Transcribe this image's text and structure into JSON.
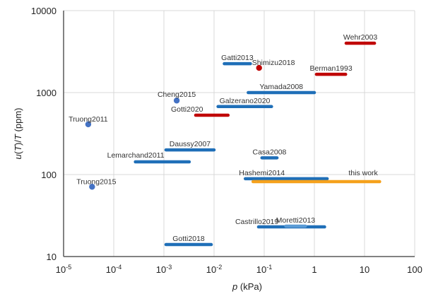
{
  "chart_data": {
    "type": "scatter",
    "title": "",
    "xlabel": {
      "italic": "p",
      "rest": " (kPa)"
    },
    "ylabel": {
      "parts": [
        {
          "t": "u",
          "i": true
        },
        {
          "t": "(",
          "i": false
        },
        {
          "t": "T",
          "i": true
        },
        {
          "t": ")/",
          "i": false
        },
        {
          "t": "T",
          "i": true
        },
        {
          "t": " (ppm)",
          "i": false
        }
      ]
    },
    "xscale": "log",
    "yscale": "log",
    "xlim": [
      1e-05,
      100
    ],
    "ylim": [
      10,
      10000
    ],
    "grid": true,
    "x_ticks": [
      {
        "value": 1e-05,
        "base": "10",
        "exp": "-5"
      },
      {
        "value": 0.0001,
        "base": "10",
        "exp": "-4"
      },
      {
        "value": 0.001,
        "base": "10",
        "exp": "-3"
      },
      {
        "value": 0.01,
        "base": "10",
        "exp": "-2"
      },
      {
        "value": 0.1,
        "base": "10",
        "exp": "-1"
      },
      {
        "value": 1,
        "base": "1",
        "exp": ""
      },
      {
        "value": 10,
        "base": "10",
        "exp": ""
      },
      {
        "value": 100,
        "base": "100",
        "exp": ""
      }
    ],
    "y_ticks": [
      {
        "value": 10,
        "label": "10"
      },
      {
        "value": 100,
        "label": "100"
      },
      {
        "value": 1000,
        "label": "1000"
      },
      {
        "value": 10000,
        "label": "10000"
      }
    ],
    "colors": {
      "blue": "#1f6fb8",
      "red": "#c00000",
      "orange": "#f5a11c",
      "dot_blue": "#4472c4",
      "light_blue": "#5b9bd5"
    },
    "series": [
      {
        "name": "Wehr2003",
        "kind": "range",
        "p": [
          4.3,
          15.8
        ],
        "u": 4000,
        "color": "red",
        "label_at": "center-above"
      },
      {
        "name": "Berman1993",
        "kind": "range",
        "p": [
          1.1,
          4.2
        ],
        "u": 1670,
        "color": "red",
        "label_at": "center-above"
      },
      {
        "name": "Gatti2013",
        "kind": "range",
        "p": [
          0.016,
          0.053
        ],
        "u": 2250,
        "color": "blue",
        "label_at": "center-above"
      },
      {
        "name": "Shimizu2018",
        "kind": "point",
        "p": 0.079,
        "u": 2000,
        "color": "red",
        "label_at": "right-above"
      },
      {
        "name": "Yamada2008",
        "kind": "range",
        "p": [
          0.048,
          1.0
        ],
        "u": 1000,
        "color": "blue",
        "label_at": "center-above"
      },
      {
        "name": "Galzerano2020",
        "kind": "range",
        "p": [
          0.012,
          0.14
        ],
        "u": 675,
        "color": "blue",
        "label_at": "center-above"
      },
      {
        "name": "Gotti2020",
        "kind": "range",
        "p": [
          0.0043,
          0.019
        ],
        "u": 530,
        "color": "red",
        "label_at": "left-above"
      },
      {
        "name": "Cheng2015",
        "kind": "point",
        "p": 0.0018,
        "u": 800,
        "color": "dot_blue",
        "label_at": "center-above"
      },
      {
        "name": "Truong2011",
        "kind": "point",
        "p": 3.1e-05,
        "u": 410,
        "color": "dot_blue",
        "label_at": "center-above"
      },
      {
        "name": "Daussy2007",
        "kind": "range",
        "p": [
          0.0011,
          0.01
        ],
        "u": 200,
        "color": "blue",
        "label_at": "center-above"
      },
      {
        "name": "Lemarchand2011",
        "kind": "range",
        "p": [
          0.00027,
          0.0032
        ],
        "u": 143,
        "color": "blue",
        "label_at": "left-above"
      },
      {
        "name": "Casa2008",
        "kind": "range",
        "p": [
          0.09,
          0.18
        ],
        "u": 160,
        "color": "blue",
        "label_at": "center-above"
      },
      {
        "name": "Hashemi2014",
        "kind": "range",
        "p": [
          0.042,
          1.8
        ],
        "u": 89,
        "color": "blue",
        "label_at": "left-above"
      },
      {
        "name": "this work",
        "kind": "range",
        "p": [
          0.06,
          20
        ],
        "u": 82,
        "color": "orange",
        "label_at": "right-above"
      },
      {
        "name": "Truong2015",
        "kind": "point",
        "p": 3.7e-05,
        "u": 71,
        "color": "dot_blue",
        "label_at": "center-above"
      },
      {
        "name": "Castrillo2019",
        "kind": "range",
        "p": [
          0.077,
          1.6
        ],
        "u": 23,
        "color": "blue",
        "label_at": "left-above"
      },
      {
        "name": "Moretti2013",
        "kind": "range",
        "p": [
          0.27,
          0.66
        ],
        "u": 23.5,
        "color": "light_blue",
        "label_at": "center-above"
      },
      {
        "name": "Gotti2018",
        "kind": "range",
        "p": [
          0.0011,
          0.0088
        ],
        "u": 14,
        "color": "blue",
        "label_at": "center-above"
      }
    ]
  }
}
